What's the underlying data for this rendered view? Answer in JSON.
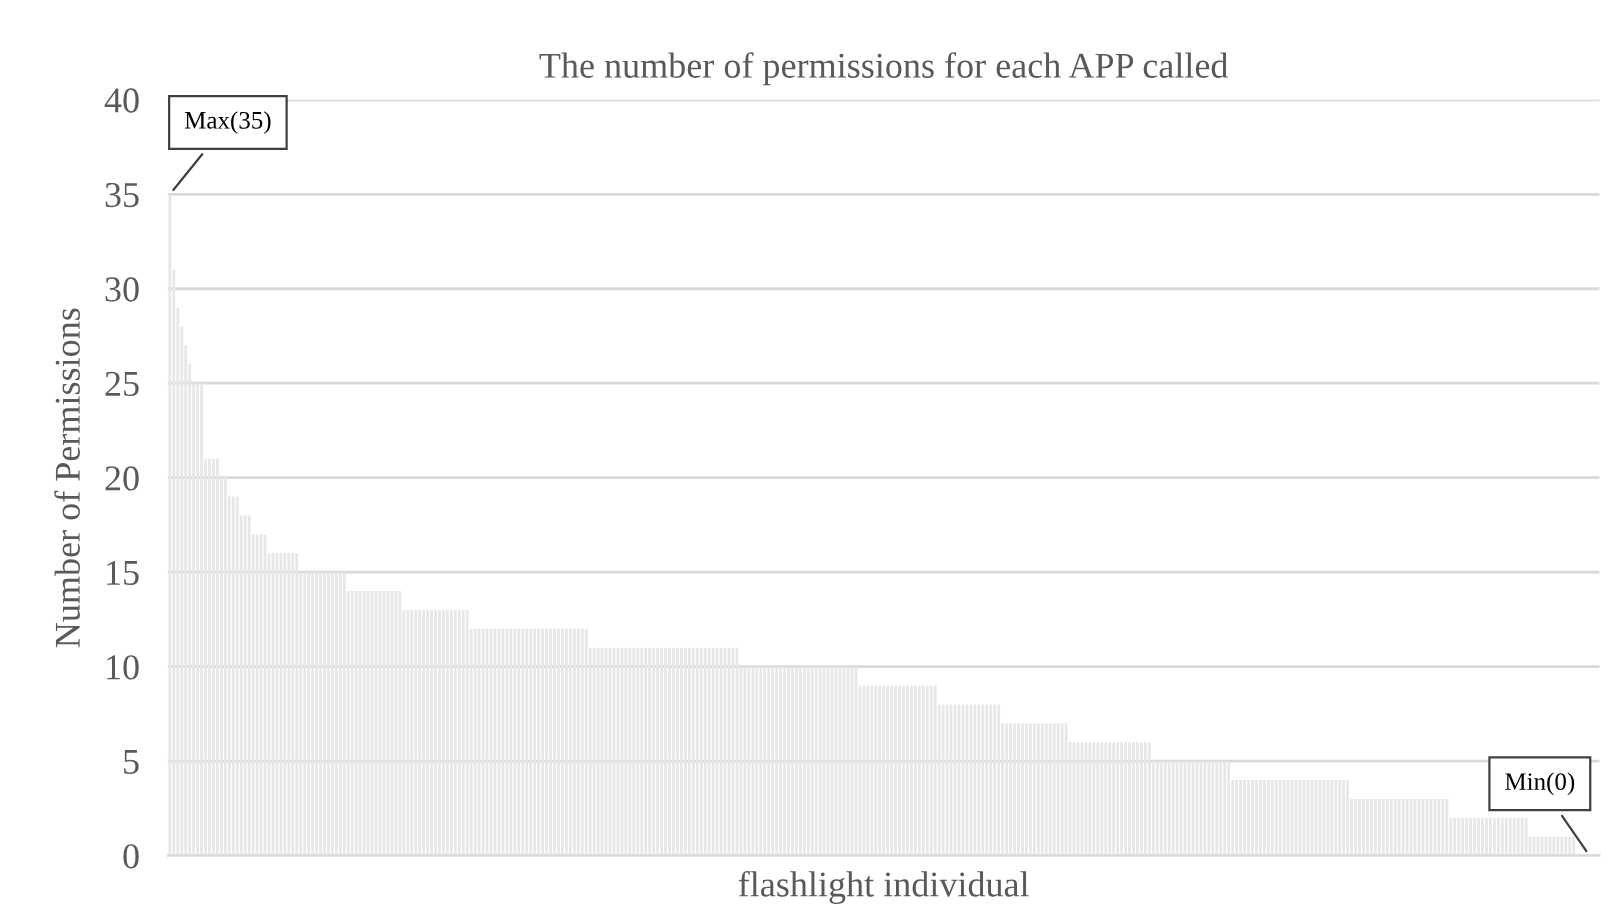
{
  "chart_data": {
    "type": "bar",
    "title": "The number of permissions for each APP called",
    "xlabel": "flashlight individual",
    "ylabel": "Number of Permissions",
    "categories": [
      null,
      null,
      null,
      null,
      null,
      null,
      null,
      null,
      null,
      null,
      null,
      null,
      null,
      null,
      null,
      null,
      null,
      null,
      null,
      null,
      null,
      null,
      null,
      null,
      null,
      null,
      null,
      null,
      null,
      null,
      null,
      null,
      null,
      null,
      null,
      null,
      null,
      null,
      null,
      null,
      null,
      null,
      null,
      null,
      null,
      null,
      null,
      null,
      null,
      null,
      null,
      null,
      null,
      null,
      null,
      null,
      null,
      null,
      null,
      null,
      null,
      null,
      null,
      null,
      null,
      null,
      null,
      null,
      null,
      null,
      null,
      null,
      null,
      null,
      null,
      null,
      null,
      null,
      null,
      null,
      null,
      null,
      null,
      null,
      null,
      null,
      null,
      null,
      null,
      null,
      null,
      null,
      null,
      null,
      null,
      null,
      null,
      null,
      null,
      null,
      null,
      null,
      null,
      null,
      null,
      null,
      null,
      null,
      null,
      null,
      null,
      null,
      null,
      null,
      null,
      null,
      null,
      null,
      null,
      null,
      null,
      null,
      null,
      null,
      null,
      null,
      null,
      null,
      null,
      null,
      null,
      null,
      null,
      null,
      null,
      null,
      null,
      null,
      null,
      null,
      null,
      null,
      null,
      null,
      null,
      null,
      null,
      null,
      null,
      null,
      null,
      null,
      null,
      null,
      null,
      null,
      null,
      null,
      null,
      null,
      null,
      null,
      null,
      null,
      null,
      null,
      null,
      null,
      null,
      null,
      null,
      null,
      null,
      null,
      null,
      null,
      null,
      null,
      null,
      null,
      null,
      null,
      null,
      null,
      null,
      null,
      null,
      null,
      null,
      null,
      null,
      null,
      null,
      null,
      null,
      null,
      null,
      null,
      null,
      null,
      null,
      null,
      null,
      null,
      null,
      null,
      null,
      null,
      null,
      null,
      null,
      null,
      null,
      null,
      null,
      null,
      null,
      null,
      null,
      null,
      null,
      null,
      null,
      null,
      null,
      null,
      null,
      null,
      null,
      null,
      null,
      null,
      null,
      null,
      null,
      null,
      null,
      null,
      null,
      null,
      null,
      null,
      null,
      null,
      null,
      null,
      null,
      null,
      null,
      null,
      null,
      null,
      null,
      null,
      null,
      null,
      null,
      null,
      null,
      null,
      null,
      null,
      null,
      null,
      null,
      null,
      null,
      null,
      null,
      null,
      null,
      null,
      null,
      null,
      null,
      null,
      null,
      null,
      null,
      null,
      null,
      null,
      null,
      null,
      null,
      null,
      null,
      null,
      null,
      null,
      null,
      null,
      null,
      null,
      null,
      null,
      null,
      null,
      null,
      null,
      null,
      null,
      null,
      null,
      null,
      null,
      null,
      null,
      null,
      null,
      null,
      null,
      null,
      null,
      null,
      null,
      null,
      null,
      null,
      null,
      null,
      null,
      null,
      null,
      null,
      null,
      null,
      null,
      null,
      null,
      null,
      null,
      null,
      null,
      null,
      null,
      null,
      null,
      null,
      null,
      null,
      null,
      null,
      null,
      null,
      null,
      null,
      null,
      null,
      null,
      null,
      null,
      null,
      null,
      null,
      null,
      null,
      null,
      null,
      null,
      null
    ],
    "values": [
      35,
      31,
      29,
      28,
      27,
      26,
      25,
      25,
      25,
      21,
      21,
      21,
      21,
      20,
      20,
      19,
      19,
      19,
      18,
      18,
      18,
      17,
      17,
      17,
      17,
      16,
      16,
      16,
      16,
      16,
      16,
      16,
      16,
      15,
      15,
      15,
      15,
      15,
      15,
      15,
      15,
      15,
      15,
      15,
      15,
      14,
      14,
      14,
      14,
      14,
      14,
      14,
      14,
      14,
      14,
      14,
      14,
      14,
      14,
      13,
      13,
      13,
      13,
      13,
      13,
      13,
      13,
      13,
      13,
      13,
      13,
      13,
      13,
      13,
      13,
      13,
      12,
      12,
      12,
      12,
      12,
      12,
      12,
      12,
      12,
      12,
      12,
      12,
      12,
      12,
      12,
      12,
      12,
      12,
      12,
      12,
      12,
      12,
      12,
      12,
      12,
      12,
      12,
      12,
      12,
      12,
      11,
      11,
      11,
      11,
      11,
      11,
      11,
      11,
      11,
      11,
      11,
      11,
      11,
      11,
      11,
      11,
      11,
      11,
      11,
      11,
      11,
      11,
      11,
      11,
      11,
      11,
      11,
      11,
      11,
      11,
      11,
      11,
      11,
      11,
      11,
      11,
      11,
      11,
      10,
      10,
      10,
      10,
      10,
      10,
      10,
      10,
      10,
      10,
      10,
      10,
      10,
      10,
      10,
      10,
      10,
      10,
      10,
      10,
      10,
      10,
      10,
      10,
      10,
      10,
      10,
      10,
      10,
      10,
      9,
      9,
      9,
      9,
      9,
      9,
      9,
      9,
      9,
      9,
      9,
      9,
      9,
      9,
      9,
      9,
      9,
      9,
      9,
      9,
      8,
      8,
      8,
      8,
      8,
      8,
      8,
      8,
      8,
      8,
      8,
      8,
      8,
      8,
      8,
      8,
      7,
      7,
      7,
      7,
      7,
      7,
      7,
      7,
      7,
      7,
      7,
      7,
      7,
      7,
      7,
      7,
      7,
      6,
      6,
      6,
      6,
      6,
      6,
      6,
      6,
      6,
      6,
      6,
      6,
      6,
      6,
      6,
      6,
      6,
      6,
      6,
      6,
      6,
      5,
      5,
      5,
      5,
      5,
      5,
      5,
      5,
      5,
      5,
      5,
      5,
      5,
      5,
      5,
      5,
      5,
      5,
      5,
      5,
      4,
      4,
      4,
      4,
      4,
      4,
      4,
      4,
      4,
      4,
      4,
      4,
      4,
      4,
      4,
      4,
      4,
      4,
      4,
      4,
      4,
      4,
      4,
      4,
      4,
      4,
      4,
      4,
      4,
      4,
      3,
      3,
      3,
      3,
      3,
      3,
      3,
      3,
      3,
      3,
      3,
      3,
      3,
      3,
      3,
      3,
      3,
      3,
      3,
      3,
      3,
      3,
      3,
      3,
      3,
      2,
      2,
      2,
      2,
      2,
      2,
      2,
      2,
      2,
      2,
      2,
      2,
      2,
      2,
      2,
      2,
      2,
      2,
      2,
      2,
      1,
      1,
      1,
      1,
      1,
      1,
      1,
      1,
      1,
      1,
      1,
      1,
      0,
      0,
      0,
      0,
      0,
      0
    ],
    "color": "#e7e7e7",
    "ylim": [
      0,
      40
    ],
    "yticks": [
      0,
      5,
      10,
      15,
      20,
      25,
      30,
      35,
      40
    ],
    "grid": "y",
    "annotations": [
      "Max(35)",
      "Min(0)"
    ]
  }
}
